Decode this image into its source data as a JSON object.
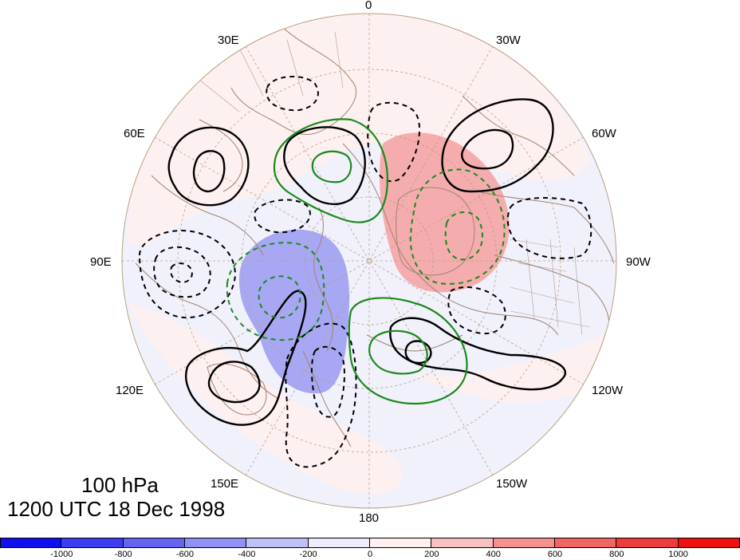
{
  "map": {
    "projection": "north polar stereographic",
    "level_label": "100 hPa",
    "time_label": "1200 UTC 18 Dec 1998",
    "longitude_labels": {
      "top": "0",
      "top_left": "30E",
      "top_right": "30W",
      "upper_left": "60E",
      "upper_right": "60W",
      "left": "90E",
      "right": "90W",
      "lower_left": "120E",
      "lower_right": "120W",
      "bottom_left": "150E",
      "bottom_right": "150W",
      "bottom": "180"
    },
    "shading_anomalies": [
      {
        "sign": "positive",
        "level": 300,
        "region": "North Atlantic / Greenland"
      },
      {
        "sign": "negative",
        "level": -500,
        "region": "Eastern Siberia"
      }
    ],
    "contour_styles": {
      "solid_black": "positive contours",
      "dashed_black": "negative contours",
      "green": "secondary field"
    },
    "colors": {
      "coast": "#a0826d",
      "solid_contour": "#000000",
      "green_contour": "#1a8a1a",
      "grid": "#b8a080"
    }
  },
  "colorbar": {
    "labels": [
      "-1000",
      "-800",
      "-600",
      "-400",
      "-200",
      "0",
      "200",
      "400",
      "600",
      "800",
      "1000"
    ],
    "colors": [
      "#1010ee",
      "#3c3cf0",
      "#6464f2",
      "#9090f5",
      "#c0c0f8",
      "#ececfc",
      "#fff0f0",
      "#f8c0c0",
      "#f49090",
      "#f06464",
      "#ec3c3c",
      "#ee1010"
    ]
  }
}
